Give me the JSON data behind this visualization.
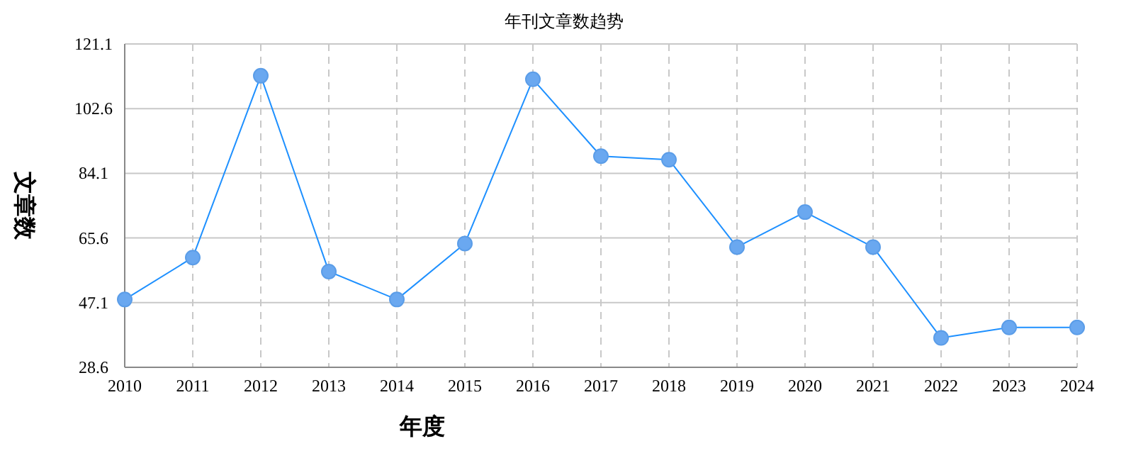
{
  "chart_data": {
    "type": "line",
    "title": "年刊文章数趋势",
    "xlabel": "年度",
    "ylabel": "文章数",
    "categories": [
      "2010",
      "2011",
      "2012",
      "2013",
      "2014",
      "2015",
      "2016",
      "2017",
      "2018",
      "2019",
      "2020",
      "2021",
      "2022",
      "2023",
      "2024"
    ],
    "series": [
      {
        "color": "#1e90ff",
        "values": [
          48,
          60,
          112,
          56,
          48,
          64,
          111,
          89,
          88,
          63,
          73,
          63,
          37,
          40,
          40
        ]
      }
    ],
    "ylim": [
      28.6,
      121.1
    ],
    "yticks": [
      28.6,
      47.1,
      65.6,
      84.1,
      102.6,
      121.1
    ],
    "grid": true,
    "marker": "circle",
    "line_style": "solid"
  }
}
